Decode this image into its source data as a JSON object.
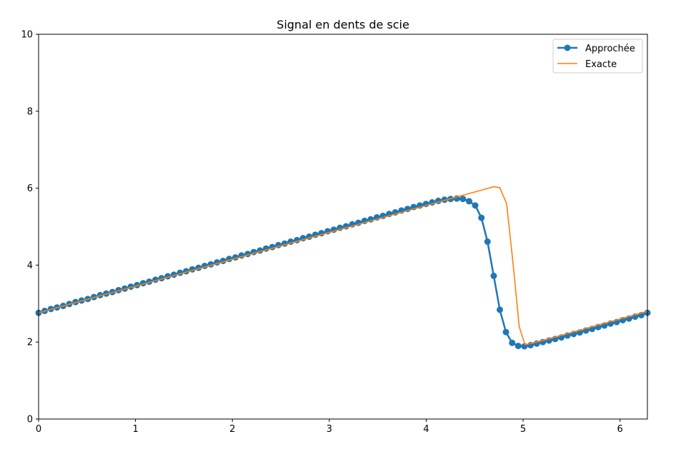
{
  "chart_data": {
    "type": "line",
    "title": "Signal en dents de scie",
    "xlabel": "",
    "ylabel": "",
    "xlim": [
      0,
      6.283
    ],
    "ylim": [
      0,
      10
    ],
    "xticks": [
      "0",
      "1",
      "2",
      "3",
      "4",
      "5",
      "6"
    ],
    "yticks": [
      "0",
      "2",
      "4",
      "6",
      "8",
      "10"
    ],
    "grid": false,
    "legend_position": "top-right",
    "series": [
      {
        "name": "Approchée",
        "color": "#1f77b4",
        "marker": "circle",
        "x": [
          0.0,
          0.063,
          0.127,
          0.19,
          0.254,
          0.317,
          0.381,
          0.444,
          0.508,
          0.571,
          0.635,
          0.698,
          0.762,
          0.825,
          0.889,
          0.952,
          1.016,
          1.079,
          1.142,
          1.206,
          1.269,
          1.333,
          1.396,
          1.46,
          1.523,
          1.587,
          1.65,
          1.714,
          1.777,
          1.841,
          1.904,
          1.967,
          2.031,
          2.094,
          2.158,
          2.221,
          2.285,
          2.348,
          2.412,
          2.475,
          2.539,
          2.602,
          2.666,
          2.729,
          2.793,
          2.856,
          2.919,
          2.983,
          3.046,
          3.11,
          3.173,
          3.237,
          3.3,
          3.364,
          3.427,
          3.491,
          3.554,
          3.618,
          3.681,
          3.745,
          3.808,
          3.871,
          3.935,
          3.998,
          4.062,
          4.125,
          4.189,
          4.252,
          4.316,
          4.379,
          4.443,
          4.506,
          4.57,
          4.633,
          4.697,
          4.76,
          4.823,
          4.887,
          4.95,
          5.014,
          5.077,
          5.141,
          5.204,
          5.268,
          5.331,
          5.395,
          5.458,
          5.522,
          5.585,
          5.649,
          5.712,
          5.775,
          5.839,
          5.902,
          5.966,
          6.029,
          6.093,
          6.156,
          6.22,
          6.283
        ],
        "y": [
          2.76,
          2.81,
          2.86,
          2.9,
          2.94,
          2.99,
          3.04,
          3.08,
          3.12,
          3.17,
          3.22,
          3.26,
          3.3,
          3.35,
          3.39,
          3.44,
          3.48,
          3.53,
          3.57,
          3.62,
          3.66,
          3.71,
          3.75,
          3.8,
          3.84,
          3.89,
          3.93,
          3.98,
          4.02,
          4.07,
          4.11,
          4.16,
          4.2,
          4.25,
          4.29,
          4.34,
          4.38,
          4.43,
          4.47,
          4.52,
          4.56,
          4.61,
          4.65,
          4.7,
          4.74,
          4.79,
          4.83,
          4.88,
          4.92,
          4.97,
          5.01,
          5.06,
          5.1,
          5.15,
          5.19,
          5.24,
          5.28,
          5.33,
          5.37,
          5.42,
          5.46,
          5.51,
          5.55,
          5.59,
          5.63,
          5.67,
          5.7,
          5.72,
          5.73,
          5.72,
          5.66,
          5.55,
          5.23,
          4.61,
          3.72,
          2.84,
          2.26,
          1.98,
          1.9,
          1.89,
          1.92,
          1.96,
          2.0,
          2.04,
          2.08,
          2.12,
          2.17,
          2.21,
          2.25,
          2.3,
          2.34,
          2.39,
          2.43,
          2.48,
          2.52,
          2.57,
          2.61,
          2.66,
          2.7,
          2.76
        ]
      },
      {
        "name": "Exacte",
        "color": "#ff7f0e",
        "marker": "none",
        "x": [
          0.0,
          0.5,
          1.0,
          1.5,
          2.0,
          2.5,
          3.0,
          3.5,
          4.0,
          4.3,
          4.5,
          4.6,
          4.7,
          4.76,
          4.83,
          4.9,
          4.96,
          5.02,
          5.2,
          5.5,
          5.8,
          6.0,
          6.283
        ],
        "y": [
          2.76,
          3.11,
          3.45,
          3.8,
          4.15,
          4.5,
          4.85,
          5.2,
          5.55,
          5.76,
          5.9,
          5.97,
          6.04,
          6.01,
          5.6,
          3.96,
          2.4,
          1.93,
          2.04,
          2.25,
          2.46,
          2.6,
          2.8
        ]
      }
    ]
  }
}
